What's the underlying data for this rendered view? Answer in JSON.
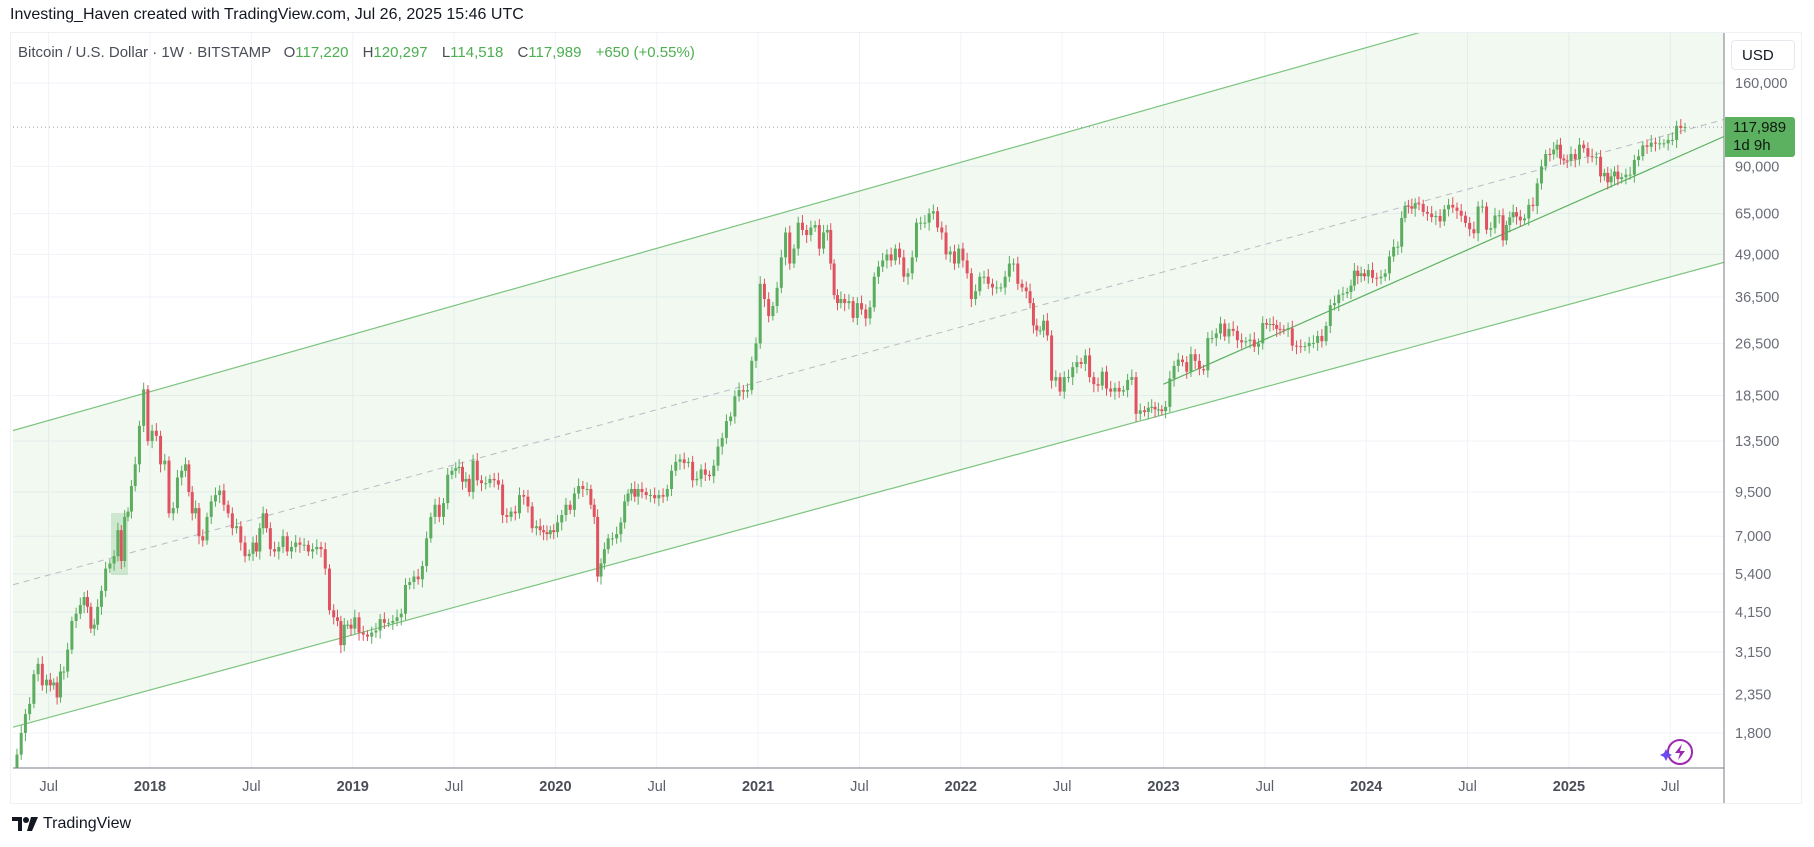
{
  "header": {
    "attribution": "Investing_Haven created with TradingView.com, Jul 26, 2025 15:46 UTC"
  },
  "legend": {
    "symbol": "Bitcoin / U.S. Dollar · 1W · BITSTAMP",
    "open_label": "O",
    "open": "117,220",
    "high_label": "H",
    "high": "120,297",
    "low_label": "L",
    "low": "114,518",
    "close_label": "C",
    "close": "117,989",
    "change": "+650 (+0.55%)"
  },
  "price_axis": {
    "currency": "USD",
    "last_price": "117,989",
    "countdown": "1d 9h"
  },
  "branding": {
    "logo_text": "TradingView",
    "logo_icon": "tradingview-logo-icon",
    "assistant_icon": "lightning-sparkle-icon"
  },
  "colors": {
    "up": "#5cad5f",
    "down": "#e0525f",
    "channel": "#7cc47f",
    "channel_fill": "#4caf50",
    "last_price": "#5cb160",
    "assistant": "#9c27b0"
  },
  "chart_data": {
    "type": "candlestick",
    "interval": "1W",
    "yscale": "log",
    "ylim": [
      1400,
      200000
    ],
    "grid": true,
    "yticks": [
      160000,
      90000,
      65000,
      49000,
      36500,
      26500,
      18500,
      13500,
      9500,
      7000,
      5400,
      4150,
      3150,
      2350,
      1800
    ],
    "ytick_labels": [
      "160,000",
      "90,000",
      "65,000",
      "49,000",
      "36,500",
      "26,500",
      "18,500",
      "13,500",
      "9,500",
      "7,000",
      "5,400",
      "4,150",
      "3,150",
      "2,350",
      "1,800"
    ],
    "xticks": [
      {
        "label": "Jul",
        "t": 2017.5,
        "major": false
      },
      {
        "label": "2018",
        "t": 2018.0,
        "major": true
      },
      {
        "label": "Jul",
        "t": 2018.5,
        "major": false
      },
      {
        "label": "2019",
        "t": 2019.0,
        "major": true
      },
      {
        "label": "Jul",
        "t": 2019.5,
        "major": false
      },
      {
        "label": "2020",
        "t": 2020.0,
        "major": true
      },
      {
        "label": "Jul",
        "t": 2020.5,
        "major": false
      },
      {
        "label": "2021",
        "t": 2021.0,
        "major": true
      },
      {
        "label": "Jul",
        "t": 2021.5,
        "major": false
      },
      {
        "label": "2022",
        "t": 2022.0,
        "major": true
      },
      {
        "label": "Jul",
        "t": 2022.5,
        "major": false
      },
      {
        "label": "2023",
        "t": 2023.0,
        "major": true
      },
      {
        "label": "Jul",
        "t": 2023.5,
        "major": false
      },
      {
        "label": "2024",
        "t": 2024.0,
        "major": true
      },
      {
        "label": "Jul",
        "t": 2024.5,
        "major": false
      },
      {
        "label": "2025",
        "t": 2025.0,
        "major": true
      },
      {
        "label": "Jul",
        "t": 2025.5,
        "major": false
      }
    ],
    "last_price": 117989,
    "weekly_closes_by_month": [
      {
        "m": "2017-04",
        "c": [
          1350
        ]
      },
      {
        "m": "2017-05",
        "c": [
          1550,
          1800,
          2050,
          2200
        ]
      },
      {
        "m": "2017-06",
        "c": [
          2700,
          2900,
          2500,
          2600
        ]
      },
      {
        "m": "2017-07",
        "c": [
          2500,
          2550,
          2300,
          2750,
          2750
        ]
      },
      {
        "m": "2017-08",
        "c": [
          3200,
          3900,
          4100,
          4350
        ]
      },
      {
        "m": "2017-09",
        "c": [
          4600,
          4300,
          3700,
          3800,
          4300
        ]
      },
      {
        "m": "2017-10",
        "c": [
          4800,
          5600,
          5800,
          6100
        ]
      },
      {
        "m": "2017-11",
        "c": [
          7300,
          5900,
          8000,
          8300,
          9900
        ]
      },
      {
        "m": "2017-12",
        "c": [
          11500,
          15000,
          19300,
          13500
        ]
      },
      {
        "m": "2018-01",
        "c": [
          14500,
          14000,
          11500,
          11800
        ]
      },
      {
        "m": "2018-02",
        "c": [
          8200,
          8500,
          10500,
          11000
        ]
      },
      {
        "m": "2018-03",
        "c": [
          11500,
          9500,
          8200,
          8500,
          7000
        ]
      },
      {
        "m": "2018-04",
        "c": [
          6800,
          8000,
          8900,
          9300
        ]
      },
      {
        "m": "2018-05",
        "c": [
          9600,
          8700,
          8200,
          7400
        ]
      },
      {
        "m": "2018-06",
        "c": [
          7500,
          6700,
          6100,
          6200
        ]
      },
      {
        "m": "2018-07",
        "c": [
          6700,
          6300,
          7400,
          8200,
          7400
        ]
      },
      {
        "m": "2018-08",
        "c": [
          6400,
          6300,
          6500,
          7000
        ]
      },
      {
        "m": "2018-09",
        "c": [
          6300,
          6500,
          6700,
          6600
        ]
      },
      {
        "m": "2018-10",
        "c": [
          6600,
          6300,
          6400,
          6500
        ]
      },
      {
        "m": "2018-11",
        "c": [
          6400,
          5600,
          4200,
          4000
        ]
      },
      {
        "m": "2018-12",
        "c": [
          3900,
          3300,
          3800,
          3800,
          3700
        ]
      },
      {
        "m": "2019-01",
        "c": [
          4000,
          3600,
          3550,
          3500
        ]
      },
      {
        "m": "2019-02",
        "c": [
          3600,
          3650,
          3950,
          3850
        ]
      },
      {
        "m": "2019-03",
        "c": [
          3850,
          3900,
          4000,
          4100
        ]
      },
      {
        "m": "2019-04",
        "c": [
          5000,
          5100,
          5300,
          5200
        ]
      },
      {
        "m": "2019-05",
        "c": [
          5700,
          6900,
          8000,
          8700
        ]
      },
      {
        "m": "2019-06",
        "c": [
          8000,
          8800,
          10700,
          11000
        ]
      },
      {
        "m": "2019-07",
        "c": [
          11200,
          11300,
          10200,
          10400,
          9500
        ]
      },
      {
        "m": "2019-08",
        "c": [
          11800,
          10300,
          10100,
          10100
        ]
      },
      {
        "m": "2019-09",
        "c": [
          10400,
          10300,
          10000,
          8100
        ]
      },
      {
        "m": "2019-10",
        "c": [
          8000,
          8300,
          8200,
          9300
        ]
      },
      {
        "m": "2019-11",
        "c": [
          9200,
          8600,
          7400,
          7500
        ]
      },
      {
        "m": "2019-12",
        "c": [
          7300,
          7200,
          7100,
          7300,
          7200
        ]
      },
      {
        "m": "2020-01",
        "c": [
          7700,
          8100,
          8700,
          8400
        ]
      },
      {
        "m": "2020-02",
        "c": [
          9400,
          9900,
          9700,
          9700
        ]
      },
      {
        "m": "2020-03",
        "c": [
          8700,
          8000,
          5300,
          5800,
          6400
        ]
      },
      {
        "m": "2020-04",
        "c": [
          6900,
          6900,
          7100,
          7700
        ]
      },
      {
        "m": "2020-05",
        "c": [
          8900,
          9400,
          9700,
          9200,
          9700
        ]
      },
      {
        "m": "2020-06",
        "c": [
          9500,
          9300,
          9300,
          9100
        ]
      },
      {
        "m": "2020-07",
        "c": [
          9300,
          9200,
          9700,
          11000
        ]
      },
      {
        "m": "2020-08",
        "c": [
          11700,
          11900,
          11600,
          11700
        ]
      },
      {
        "m": "2020-09",
        "c": [
          10300,
          10400,
          11100,
          10700
        ]
      },
      {
        "m": "2020-10",
        "c": [
          10600,
          11400,
          13000,
          13800
        ]
      },
      {
        "m": "2020-11",
        "c": [
          15500,
          16000,
          18400,
          19200
        ]
      },
      {
        "m": "2020-12",
        "c": [
          19000,
          19200,
          23500,
          26500
        ]
      },
      {
        "m": "2021-01",
        "c": [
          40000,
          36000,
          32000,
          34300
        ]
      },
      {
        "m": "2021-02",
        "c": [
          38900,
          48000,
          57000,
          46000
        ]
      },
      {
        "m": "2021-03",
        "c": [
          51000,
          61000,
          58000,
          56000
        ]
      },
      {
        "m": "2021-04",
        "c": [
          59000,
          60000,
          51000,
          57000
        ]
      },
      {
        "m": "2021-05",
        "c": [
          58000,
          46000,
          37000,
          35000,
          36000
        ]
      },
      {
        "m": "2021-06",
        "c": [
          35000,
          35500,
          31600,
          35000
        ]
      },
      {
        "m": "2021-07",
        "c": [
          33500,
          31500,
          34000,
          42000
        ]
      },
      {
        "m": "2021-08",
        "c": [
          45000,
          47000,
          49000,
          47000
        ]
      },
      {
        "m": "2021-09",
        "c": [
          51000,
          48000,
          42000,
          43000
        ]
      },
      {
        "m": "2021-10",
        "c": [
          48000,
          61000,
          61000,
          61000
        ]
      },
      {
        "m": "2021-11",
        "c": [
          65000,
          66000,
          59000,
          57000
        ]
      },
      {
        "m": "2021-12",
        "c": [
          49000,
          50000,
          46000,
          51000
        ]
      },
      {
        "m": "2022-01",
        "c": [
          47000,
          43000,
          36000,
          38000
        ]
      },
      {
        "m": "2022-02",
        "c": [
          42000,
          42000,
          40000,
          39000
        ]
      },
      {
        "m": "2022-03",
        "c": [
          39000,
          39000,
          42000,
          46000
        ]
      },
      {
        "m": "2022-04",
        "c": [
          46000,
          40000,
          39000,
          38000
        ]
      },
      {
        "m": "2022-05",
        "c": [
          35000,
          30000,
          29000,
          29000,
          31000
        ]
      },
      {
        "m": "2022-06",
        "c": [
          28000,
          20500,
          21000,
          19000
        ]
      },
      {
        "m": "2022-07",
        "c": [
          21000,
          21000,
          22500,
          23300
        ]
      },
      {
        "m": "2022-08",
        "c": [
          23000,
          24400,
          21000,
          20000
        ]
      },
      {
        "m": "2022-09",
        "c": [
          19800,
          21800,
          19400,
          19000
        ]
      },
      {
        "m": "2022-10",
        "c": [
          19500,
          19000,
          19200,
          20600
        ]
      },
      {
        "m": "2022-11",
        "c": [
          21000,
          16300,
          16700,
          16500
        ]
      },
      {
        "m": "2022-12",
        "c": [
          17000,
          17100,
          16800,
          16800,
          16600
        ]
      },
      {
        "m": "2023-01",
        "c": [
          17100,
          20800,
          22700,
          23700
        ]
      },
      {
        "m": "2023-02",
        "c": [
          23300,
          21800,
          24600,
          23500
        ]
      },
      {
        "m": "2023-03",
        "c": [
          22200,
          22000,
          27500,
          27500
        ]
      },
      {
        "m": "2023-04",
        "c": [
          28400,
          30400,
          27800,
          29300
        ]
      },
      {
        "m": "2023-05",
        "c": [
          28900,
          27100,
          26700,
          26900
        ]
      },
      {
        "m": "2023-06",
        "c": [
          27200,
          25900,
          26500,
          30500
        ]
      },
      {
        "m": "2023-07",
        "c": [
          30200,
          30300,
          30100,
          29300,
          29200
        ]
      },
      {
        "m": "2023-08",
        "c": [
          29100,
          29400,
          26100,
          26000
        ]
      },
      {
        "m": "2023-09",
        "c": [
          25900,
          26000,
          26600,
          26600
        ]
      },
      {
        "m": "2023-10",
        "c": [
          27900,
          26900,
          29900,
          34500
        ]
      },
      {
        "m": "2023-11",
        "c": [
          35000,
          37100,
          37400,
          37800
        ]
      },
      {
        "m": "2023-12",
        "c": [
          39500,
          43800,
          42200,
          43000,
          42100
        ]
      },
      {
        "m": "2024-01",
        "c": [
          44000,
          41700,
          41600,
          42000
        ]
      },
      {
        "m": "2024-02",
        "c": [
          43000,
          48300,
          51600,
          51700
        ]
      },
      {
        "m": "2024-03",
        "c": [
          63000,
          68500,
          68300,
          67200,
          69700
        ]
      },
      {
        "m": "2024-04",
        "c": [
          69400,
          65700,
          64900,
          63400
        ]
      },
      {
        "m": "2024-05",
        "c": [
          63900,
          61500,
          66900,
          69000
        ]
      },
      {
        "m": "2024-06",
        "c": [
          67700,
          66200,
          64000,
          60900
        ]
      },
      {
        "m": "2024-07",
        "c": [
          58300,
          56700,
          68200,
          68200
        ]
      },
      {
        "m": "2024-08",
        "c": [
          58100,
          58700,
          64100,
          64200
        ]
      },
      {
        "m": "2024-09",
        "c": [
          54000,
          60000,
          63300,
          65600,
          63600
        ]
      },
      {
        "m": "2024-10",
        "c": [
          62000,
          62800,
          69000,
          68400
        ]
      },
      {
        "m": "2024-11",
        "c": [
          80000,
          90000,
          98000,
          97800
        ]
      },
      {
        "m": "2024-12",
        "c": [
          101000,
          104500,
          95000,
          93700,
          93400
        ]
      },
      {
        "m": "2025-01",
        "c": [
          98000,
          94500,
          104500,
          102000
        ]
      },
      {
        "m": "2025-02",
        "c": [
          96500,
          96000,
          96100,
          84000
        ]
      },
      {
        "m": "2025-03",
        "c": [
          86000,
          80600,
          84000,
          86800,
          82400
        ]
      },
      {
        "m": "2025-04",
        "c": [
          83500,
          85000,
          85000,
          94000
        ]
      },
      {
        "m": "2025-05",
        "c": [
          96500,
          104000,
          103000,
          106000
        ]
      },
      {
        "m": "2025-06",
        "c": [
          105500,
          105500,
          105500,
          108000
        ]
      },
      {
        "m": "2025-07",
        "c": [
          108000,
          119000,
          117300,
          117989
        ]
      }
    ],
    "drawings": [
      {
        "type": "parallel-channel-upper",
        "from": {
          "t": 2017.32,
          "price": 14500
        },
        "to": {
          "t": 2025.5,
          "price": 370000
        }
      },
      {
        "type": "parallel-channel-mid",
        "style": "dashed",
        "from": {
          "t": 2017.32,
          "price": 5000
        },
        "to": {
          "t": 2025.8,
          "price": 126000
        }
      },
      {
        "type": "parallel-channel-lower",
        "from": {
          "t": 2017.32,
          "price": 1870
        },
        "to": {
          "t": 2025.8,
          "price": 47000
        }
      },
      {
        "type": "trendline",
        "from": {
          "t": 2023.0,
          "price": 20000
        },
        "to": {
          "t": 2025.8,
          "price": 113000
        }
      },
      {
        "type": "horizontal-price-line",
        "style": "dotted",
        "price": 117989
      }
    ]
  }
}
